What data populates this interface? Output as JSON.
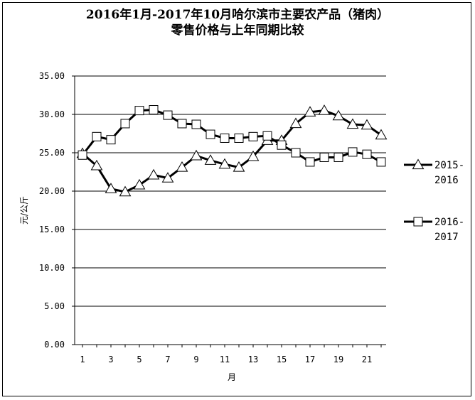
{
  "chart_data": {
    "type": "line",
    "title_line1": "2016年1月-2017年10月哈尔滨市主要农产品（猪肉）",
    "title_line2": "零售价格与上年同期比较",
    "xlabel": "月",
    "ylabel": "元/公斤",
    "ylim": [
      0,
      35
    ],
    "xlim": [
      1,
      22
    ],
    "yticks": [
      "0.00",
      "5.00",
      "10.00",
      "15.00",
      "20.00",
      "25.00",
      "30.00",
      "35.00"
    ],
    "xticks": [
      1,
      3,
      5,
      7,
      9,
      11,
      13,
      15,
      17,
      19,
      21
    ],
    "grid": true,
    "legend_position": "right",
    "series": [
      {
        "name_line1": "2015-",
        "name_line2": "2016",
        "marker": "triangle",
        "values": [
          24.9,
          23.3,
          20.3,
          19.9,
          20.8,
          22.1,
          21.7,
          23.1,
          24.6,
          24.0,
          23.5,
          23.1,
          24.5,
          26.6,
          26.6,
          28.8,
          30.3,
          30.5,
          29.8,
          28.7,
          28.6,
          27.3
        ]
      },
      {
        "name_line1": "2016-",
        "name_line2": "2017",
        "marker": "square",
        "values": [
          24.7,
          27.1,
          26.7,
          28.8,
          30.5,
          30.6,
          29.9,
          28.8,
          28.7,
          27.4,
          26.9,
          26.9,
          27.1,
          27.2,
          26.0,
          25.0,
          23.8,
          24.4,
          24.4,
          25.1,
          24.8,
          23.8
        ]
      }
    ]
  }
}
